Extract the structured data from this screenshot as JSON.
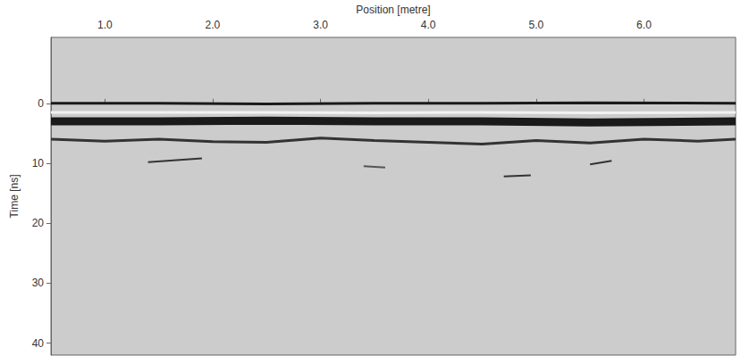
{
  "chart_data": {
    "type": "line",
    "x_label": "Position [metre]",
    "y_label": "Time [ns]",
    "xlim": [
      0.5,
      6.85
    ],
    "xticks": [
      {
        "value": 1,
        "label": "1.0"
      },
      {
        "value": 2,
        "label": "2.0"
      },
      {
        "value": 3,
        "label": "3.0"
      },
      {
        "value": 4,
        "label": "4.0"
      },
      {
        "value": 5,
        "label": "5.0"
      },
      {
        "value": 6,
        "label": "6.0"
      }
    ],
    "ylim": [
      -11,
      42
    ],
    "yticks": [
      0,
      10,
      20,
      30,
      40
    ],
    "grid": false,
    "series": [
      {
        "x": [
          0.5,
          1.5,
          2.5,
          3.5,
          4.5,
          5.5,
          6.85
        ],
        "values": [
          0,
          0,
          0.1,
          0,
          0,
          -0.1,
          0
        ],
        "color": "#1a1a1a",
        "line_style": "solid"
      },
      {
        "x": [
          0.5,
          1.5,
          2.5,
          3.5,
          4.5,
          5.5,
          6.85
        ],
        "values": [
          1.5,
          1.5,
          1.5,
          1.6,
          1.5,
          1.6,
          1.5
        ],
        "color": "#f2f2f2",
        "line_style": "solid"
      },
      {
        "x": [
          0.5,
          1.5,
          2.5,
          3.5,
          4.5,
          5.5,
          6.85
        ],
        "values": [
          3,
          3,
          2.9,
          3,
          3,
          3.2,
          3
        ],
        "color": "#1a1a1a",
        "line_style": "thick"
      },
      {
        "x": [
          0.5,
          1,
          1.5,
          2,
          2.5,
          3,
          3.5,
          4,
          4.5,
          5,
          5.5,
          6,
          6.5,
          6.85
        ],
        "values": [
          6,
          6.3,
          6,
          6.4,
          6.5,
          5.8,
          6.2,
          6.5,
          6.8,
          6.2,
          6.6,
          6,
          6.3,
          6
        ],
        "color": "#333333",
        "line_style": "solid"
      },
      {
        "x": [
          1.4,
          1.9
        ],
        "values": [
          9.8,
          9.2
        ],
        "color": "#333333",
        "line_style": "thin"
      },
      {
        "x": [
          3.4,
          3.6
        ],
        "values": [
          10.5,
          10.7
        ],
        "color": "#555555",
        "line_style": "thin"
      },
      {
        "x": [
          4.7,
          4.95
        ],
        "values": [
          12.2,
          12.0
        ],
        "color": "#333333",
        "line_style": "thin"
      },
      {
        "x": [
          5.5,
          5.7
        ],
        "values": [
          10.2,
          9.6
        ],
        "color": "#333333",
        "line_style": "thin"
      }
    ]
  }
}
